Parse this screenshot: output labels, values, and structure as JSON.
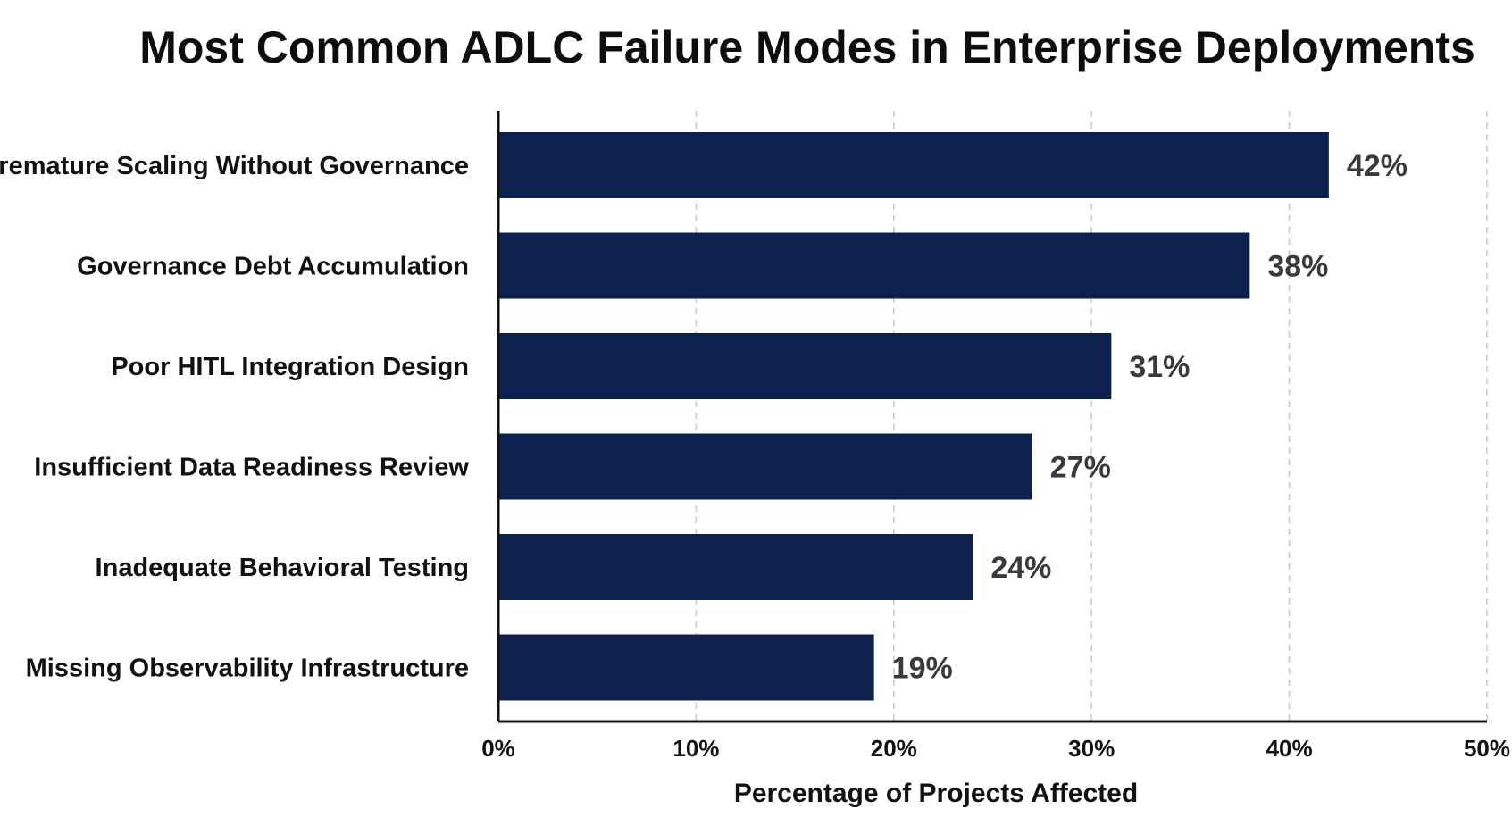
{
  "chart_data": {
    "type": "bar",
    "orientation": "horizontal",
    "title": "Most Common ADLC Failure Modes in Enterprise Deployments",
    "xlabel": "Percentage of Projects Affected",
    "ylabel": "",
    "categories": [
      "Premature Scaling Without Governance",
      "Governance Debt Accumulation",
      "Poor HITL Integration Design",
      "Insufficient Data Readiness Review",
      "Inadequate Behavioral Testing",
      "Missing Observability Infrastructure"
    ],
    "values": [
      42,
      38,
      31,
      27,
      24,
      19
    ],
    "value_labels": [
      "42%",
      "38%",
      "31%",
      "27%",
      "24%",
      "19%"
    ],
    "xlim": [
      0,
      50
    ],
    "x_ticks": [
      0,
      10,
      20,
      30,
      40,
      50
    ],
    "x_tick_labels": [
      "0%",
      "10%",
      "20%",
      "30%",
      "40%",
      "50%"
    ],
    "grid": "vertical dashed",
    "legend": "none",
    "colors": {
      "bar": "#0c2150",
      "grid": "#c8c8c8",
      "axis": "#111111",
      "value_label": "#3a3a3a"
    }
  }
}
